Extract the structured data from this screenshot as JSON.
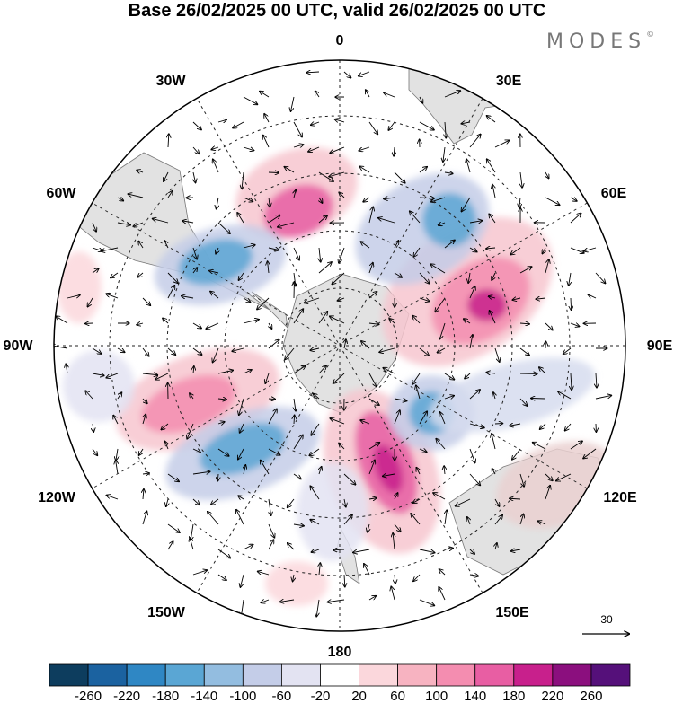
{
  "title": "Base 26/02/2025 00 UTC, valid 26/02/2025 00 UTC",
  "logo": "MODES",
  "logo_mark": "©",
  "longitude_labels": {
    "n0": "0",
    "e30": "30E",
    "e60": "60E",
    "e90": "90E",
    "e120": "120E",
    "e150": "150E",
    "s180": "180",
    "w150": "150W",
    "w120": "120W",
    "w90": "90W",
    "w60": "60W",
    "w30": "30W"
  },
  "vector_reference": {
    "value": "30"
  },
  "colorbar": {
    "levels": [
      "-260",
      "-220",
      "-180",
      "-140",
      "-100",
      "-60",
      "-20",
      "20",
      "60",
      "100",
      "140",
      "180",
      "220",
      "260"
    ],
    "colors": [
      "#0d3d5e",
      "#1b62a0",
      "#2f87c4",
      "#5aa6d4",
      "#93bde0",
      "#c4cde8",
      "#e3e3f2",
      "#ffffff",
      "#fbd7dc",
      "#f7b3c1",
      "#f48db0",
      "#e85ea3",
      "#c8208c",
      "#8b0f7e",
      "#55107a"
    ]
  },
  "land_color": "#dddddd",
  "map_center": "South Pole"
}
